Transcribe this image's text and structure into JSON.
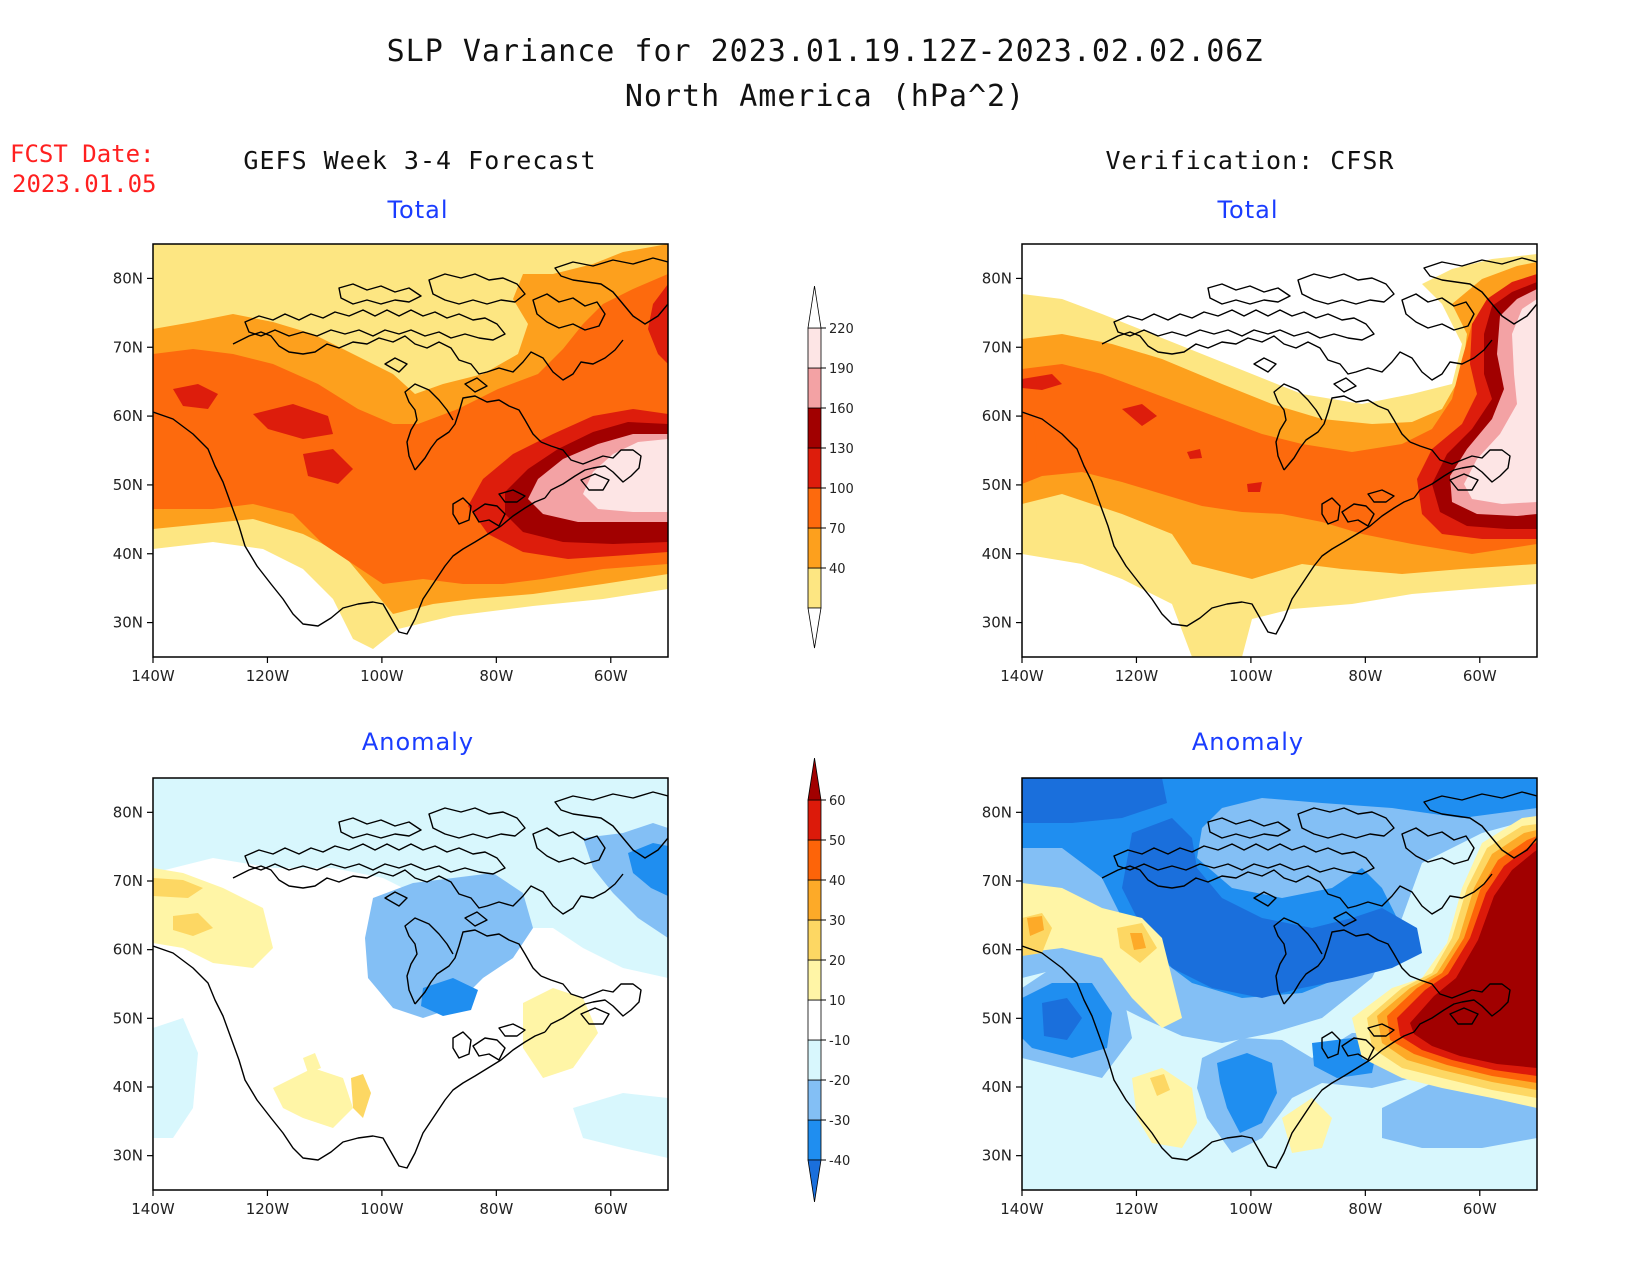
{
  "header": {
    "title_line1": "SLP Variance for 2023.01.19.12Z-2023.02.02.06Z",
    "title_line2": "North America (hPa^2)",
    "fcst_label": "FCST Date:",
    "fcst_date": "2023.01.05",
    "left_heading": "GEFS Week 3-4 Forecast",
    "right_heading": "Verification: CFSR"
  },
  "panels": {
    "fc_total": {
      "subtitle": "Total"
    },
    "vf_total": {
      "subtitle": "Total"
    },
    "fc_anom": {
      "subtitle": "Anomaly"
    },
    "vf_anom": {
      "subtitle": "Anomaly"
    }
  },
  "axes": {
    "lon_ticks": [
      "140W",
      "120W",
      "100W",
      "80W",
      "60W"
    ],
    "lat_ticks": [
      "80N",
      "70N",
      "60N",
      "50N",
      "40N",
      "30N"
    ],
    "lon_range": [
      -140,
      -50
    ],
    "lat_range": [
      25,
      85
    ]
  },
  "colorbars": {
    "total": {
      "labels": [
        "220",
        "190",
        "160",
        "130",
        "100",
        "70",
        "40"
      ],
      "levels": [
        40,
        70,
        100,
        130,
        160,
        190,
        220
      ],
      "colors": [
        "#fde682",
        "#fda01d",
        "#fd6a0d",
        "#dd1d0c",
        "#a10000",
        "#f3a2a4",
        "#fde5e5"
      ]
    },
    "anomaly": {
      "labels": [
        "60",
        "50",
        "40",
        "30",
        "20",
        "10",
        "-10",
        "-20",
        "-30",
        "-40"
      ],
      "levels": [
        -40,
        -30,
        -20,
        -10,
        10,
        20,
        30,
        40,
        50,
        60
      ],
      "colors": [
        "#1a6fdc",
        "#1f8ef0",
        "#83bff5",
        "#d8f7fd",
        "#ffffff",
        "#fff5a6",
        "#fdd763",
        "#fdaa28",
        "#fd6409",
        "#dc1a0a",
        "#a10000"
      ]
    }
  }
}
